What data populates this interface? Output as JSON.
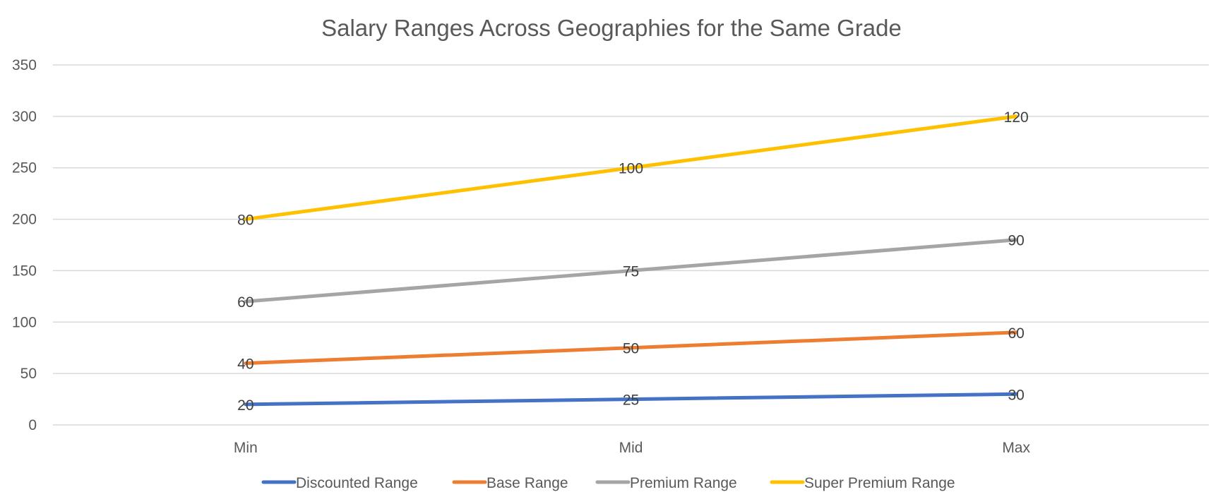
{
  "chart_data": {
    "type": "line",
    "title": "Salary Ranges Across Geographies for the Same Grade",
    "xlabel": "",
    "ylabel": "",
    "categories": [
      "Min",
      "Mid",
      "Max"
    ],
    "ylim": [
      0,
      350
    ],
    "yticks": [
      0,
      50,
      100,
      150,
      200,
      250,
      300,
      350
    ],
    "grid": true,
    "legend_position": "bottom",
    "stacked": true,
    "series": [
      {
        "name": "Discounted Range",
        "color": "#4472c4",
        "values": [
          20,
          25,
          30
        ],
        "plotted_values": [
          20,
          25,
          30
        ],
        "data_labels": [
          "20",
          "25",
          "30"
        ]
      },
      {
        "name": "Base Range",
        "color": "#ed7d31",
        "values": [
          40,
          50,
          60
        ],
        "plotted_values": [
          60,
          75,
          90
        ],
        "data_labels": [
          "40",
          "50",
          "60"
        ]
      },
      {
        "name": "Premium Range",
        "color": "#a5a5a5",
        "values": [
          60,
          75,
          90
        ],
        "plotted_values": [
          120,
          150,
          180
        ],
        "data_labels": [
          "60",
          "75",
          "90"
        ]
      },
      {
        "name": "Super Premium Range",
        "color": "#ffc000",
        "values": [
          80,
          100,
          120
        ],
        "plotted_values": [
          200,
          250,
          300
        ],
        "data_labels": [
          "80",
          "100",
          "120"
        ]
      }
    ]
  }
}
